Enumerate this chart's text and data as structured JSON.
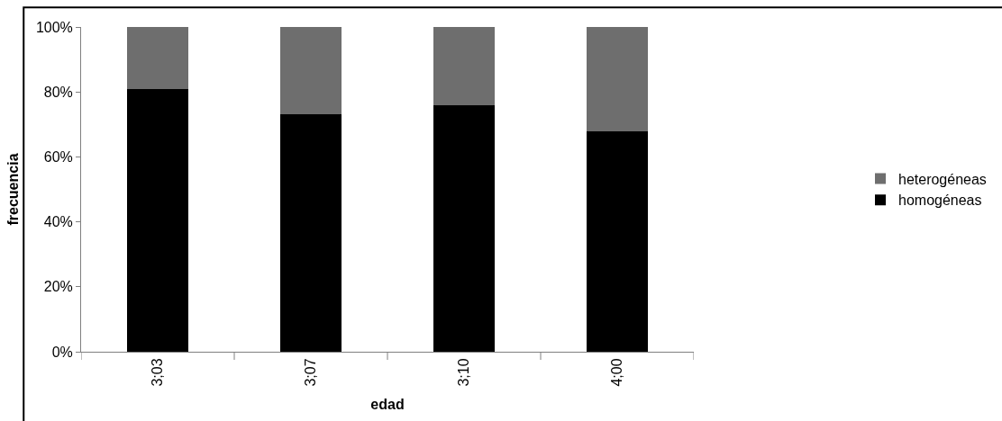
{
  "chart_data": {
    "type": "bar",
    "stacked": true,
    "xlabel": "edad",
    "ylabel": "frecuencia",
    "categories": [
      "3;03",
      "3;07",
      "3;10",
      "4;00"
    ],
    "series": [
      {
        "name": "homogéneas",
        "color": "#000000",
        "values": [
          81,
          73,
          76,
          68
        ]
      },
      {
        "name": "heterogéneas",
        "color": "#6e6e6e",
        "values": [
          19,
          27,
          24,
          32
        ]
      }
    ],
    "ylim": [
      0,
      100
    ],
    "yticks": [
      {
        "value": 0,
        "label": "0%"
      },
      {
        "value": 20,
        "label": "20%"
      },
      {
        "value": 40,
        "label": "40%"
      },
      {
        "value": 60,
        "label": "60%"
      },
      {
        "value": 80,
        "label": "80%"
      },
      {
        "value": 100,
        "label": "100%"
      }
    ],
    "grid": false,
    "legend": "right"
  }
}
